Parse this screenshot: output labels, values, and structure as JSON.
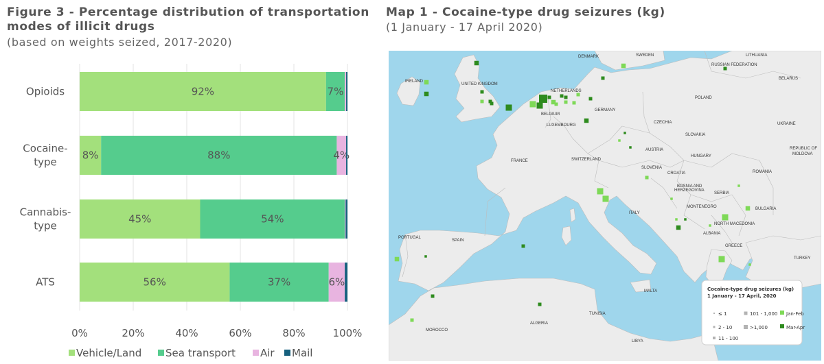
{
  "figure": {
    "title_line1": "Figure 3 - Percentage distribution of transportation",
    "title_line2": "modes of illicit drugs",
    "subtitle": "(based on weights seized, 2017-2020)"
  },
  "map": {
    "title": "Map 1 - Cocaine-type drug seizures (kg)",
    "subtitle": "(1 January - 17 April 2020)",
    "colors": {
      "sea": "#9fd6ec",
      "land": "#ececec",
      "border": "#bdbdbd"
    },
    "countries": [
      {
        "name": "DENMARK"
      },
      {
        "name": "SWEDEN"
      },
      {
        "name": "LITHUANIA"
      },
      {
        "name": "RUSSIAN FEDERATION"
      },
      {
        "name": "IRELAND"
      },
      {
        "name": "UNITED KINGDOM"
      },
      {
        "name": "NETHERLANDS"
      },
      {
        "name": "BELARUS"
      },
      {
        "name": "POLAND"
      },
      {
        "name": "GERMANY"
      },
      {
        "name": "BELGIUM"
      },
      {
        "name": "LUXEMBOURG"
      },
      {
        "name": "CZECHIA"
      },
      {
        "name": "UKRAINE"
      },
      {
        "name": "SLOVAKIA"
      },
      {
        "name": "AUSTRIA"
      },
      {
        "name": "FRANCE"
      },
      {
        "name": "SWITZERLAND"
      },
      {
        "name": "HUNGARY"
      },
      {
        "name": "REPUBLIC OF"
      },
      {
        "name": "MOLDOVA"
      },
      {
        "name": "SLOVENIA"
      },
      {
        "name": "CROATIA"
      },
      {
        "name": "ROMANIA"
      },
      {
        "name": "BOSNIA AND"
      },
      {
        "name": "HERZEGOVINA"
      },
      {
        "name": "SERBIA"
      },
      {
        "name": "MONTENEGRO"
      },
      {
        "name": "BULGARIA"
      },
      {
        "name": "ITALY"
      },
      {
        "name": "NORTH MACEDONIA"
      },
      {
        "name": "ALBANIA"
      },
      {
        "name": "PORTUGAL"
      },
      {
        "name": "SPAIN"
      },
      {
        "name": "GREECE"
      },
      {
        "name": "TURKEY"
      },
      {
        "name": "MALTA"
      },
      {
        "name": "TUNISIA"
      },
      {
        "name": "ALGERIA"
      },
      {
        "name": "MOROCCO"
      },
      {
        "name": "LIBYA"
      }
    ],
    "legend": {
      "title_line1": "Cocaine-type drug seizures (kg)",
      "title_line2": "1 January - 17 April, 2020",
      "size_items": [
        "≤ 1",
        "2 - 10",
        "11 - 100",
        "101 - 1,000",
        ">1,000"
      ],
      "color_items": [
        {
          "label": "Jan-Feb",
          "color": "#7ed957"
        },
        {
          "label": "Mar-Apr",
          "color": "#2e8b1e"
        }
      ]
    }
  },
  "chart_data": {
    "type": "bar",
    "orientation": "horizontal",
    "stacked": true,
    "categories": [
      "Opioids",
      "Cocaine-type",
      "Cannabis-type",
      "ATS"
    ],
    "category_lines": [
      [
        "Opioids"
      ],
      [
        "Cocaine-",
        "type"
      ],
      [
        "Cannabis-",
        "type"
      ],
      [
        "ATS"
      ]
    ],
    "series": [
      {
        "name": "Vehicle/Land",
        "color": "#a3e07c",
        "values": [
          92,
          8,
          45,
          56
        ]
      },
      {
        "name": "Sea transport",
        "color": "#55cc8d",
        "values": [
          7,
          88,
          54,
          37
        ]
      },
      {
        "name": "Air",
        "color": "#e8b4e0",
        "values": [
          0.5,
          3.5,
          0.3,
          6
        ]
      },
      {
        "name": "Mail",
        "color": "#16607e",
        "values": [
          0.5,
          0.5,
          0.7,
          1
        ]
      }
    ],
    "segment_labels": [
      [
        "92%",
        "7%",
        "",
        ""
      ],
      [
        "8%",
        "88%",
        "4%",
        ""
      ],
      [
        "45%",
        "54%",
        "",
        ""
      ],
      [
        "56%",
        "37%",
        "6%",
        ""
      ]
    ],
    "xlim": [
      0,
      100
    ],
    "xticks": [
      "0%",
      "20%",
      "40%",
      "60%",
      "80%",
      "100%"
    ],
    "grid": true,
    "legend_position": "bottom"
  },
  "seizures": [
    {
      "region": "Ireland",
      "period": "Jan-Feb",
      "size_class": "11 - 100"
    },
    {
      "region": "Ireland",
      "period": "Mar-Apr",
      "size_class": "11 - 100"
    },
    {
      "region": "Scotland",
      "period": "Mar-Apr",
      "size_class": "11 - 100"
    },
    {
      "region": "Wales",
      "period": "Mar-Apr",
      "size_class": "2 - 10"
    },
    {
      "region": "England",
      "period": "Mar-Apr",
      "size_class": "2 - 10"
    },
    {
      "region": "England south",
      "period": "Jan-Feb",
      "size_class": "2 - 10"
    },
    {
      "region": "England south",
      "period": "Mar-Apr",
      "size_class": "2 - 10"
    },
    {
      "region": "Kent",
      "period": "Mar-Apr",
      "size_class": "101 - 1,000"
    },
    {
      "region": "Belgium",
      "period": "Jan-Feb",
      "size_class": "101 - 1,000"
    },
    {
      "region": "Belgium",
      "period": "Mar-Apr",
      "size_class": "101 - 1,000"
    },
    {
      "region": "Rotterdam",
      "period": "Mar-Apr",
      "size_class": ">1,000"
    },
    {
      "region": "Netherlands",
      "period": "Jan-Feb",
      "size_class": "11 - 100"
    },
    {
      "region": "Netherlands",
      "period": "Mar-Apr",
      "size_class": "2 - 10"
    },
    {
      "region": "Netherlands",
      "period": "Mar-Apr",
      "size_class": "2 - 10"
    },
    {
      "region": "Netherlands",
      "period": "Jan-Feb",
      "size_class": "2 - 10"
    },
    {
      "region": "Germany west",
      "period": "Jan-Feb",
      "size_class": "2 - 10"
    },
    {
      "region": "Germany west",
      "period": "Mar-Apr",
      "size_class": "2 - 10"
    },
    {
      "region": "Germany west",
      "period": "Jan-Feb",
      "size_class": "2 - 10"
    },
    {
      "region": "Germany",
      "period": "Jan-Feb",
      "size_class": "2 - 10"
    },
    {
      "region": "Germany",
      "period": "Mar-Apr",
      "size_class": "11 - 100"
    },
    {
      "region": "Hamburg",
      "period": "Mar-Apr",
      "size_class": "2 - 10"
    },
    {
      "region": "Denmark",
      "period": "Jan-Feb",
      "size_class": "11 - 100"
    },
    {
      "region": "Sweden",
      "period": "Mar-Apr",
      "size_class": "2 - 10"
    },
    {
      "region": "Lithuania",
      "period": "Mar-Apr",
      "size_class": "2 - 10"
    },
    {
      "region": "Czechia",
      "period": "Mar-Apr",
      "size_class": "≤ 1"
    },
    {
      "region": "Austria",
      "period": "Jan-Feb",
      "size_class": "≤ 1"
    },
    {
      "region": "Austria",
      "period": "Mar-Apr",
      "size_class": "≤ 1"
    },
    {
      "region": "Slovenia",
      "period": "Jan-Feb",
      "size_class": "2 - 10"
    },
    {
      "region": "Serbia",
      "period": "Jan-Feb",
      "size_class": "≤ 1"
    },
    {
      "region": "Croatia",
      "period": "Jan-Feb",
      "size_class": "≤ 1"
    },
    {
      "region": "Italy Genoa",
      "period": "Jan-Feb",
      "size_class": "101 - 1,000"
    },
    {
      "region": "Italy Livorno",
      "period": "Jan-Feb",
      "size_class": "101 - 1,000"
    },
    {
      "region": "Italy south",
      "period": "Mar-Apr",
      "size_class": "11 - 100"
    },
    {
      "region": "Montenegro",
      "period": "Jan-Feb",
      "size_class": "≤ 1"
    },
    {
      "region": "Montenegro",
      "period": "Mar-Apr",
      "size_class": "≤ 1"
    },
    {
      "region": "Albania",
      "period": "Jan-Feb",
      "size_class": "101 - 1,000"
    },
    {
      "region": "North Macedonia",
      "period": "Jan-Feb",
      "size_class": "≤ 1"
    },
    {
      "region": "Bulgaria",
      "period": "Jan-Feb",
      "size_class": "11 - 100"
    },
    {
      "region": "Greece",
      "period": "Jan-Feb",
      "size_class": "101 - 1,000"
    },
    {
      "region": "Greece",
      "period": "Jan-Feb",
      "size_class": "≤ 1"
    },
    {
      "region": "Portugal",
      "period": "Jan-Feb",
      "size_class": "11 - 100"
    },
    {
      "region": "Portugal",
      "period": "Mar-Apr",
      "size_class": "≤ 1"
    },
    {
      "region": "Spain",
      "period": "Mar-Apr",
      "size_class": "2 - 10"
    },
    {
      "region": "Spain",
      "period": "Mar-Apr",
      "size_class": "2 - 10"
    },
    {
      "region": "Morocco",
      "period": "Jan-Feb",
      "size_class": "2 - 10"
    },
    {
      "region": "Mediterranean",
      "period": "Mar-Apr",
      "size_class": "2 - 10"
    }
  ]
}
